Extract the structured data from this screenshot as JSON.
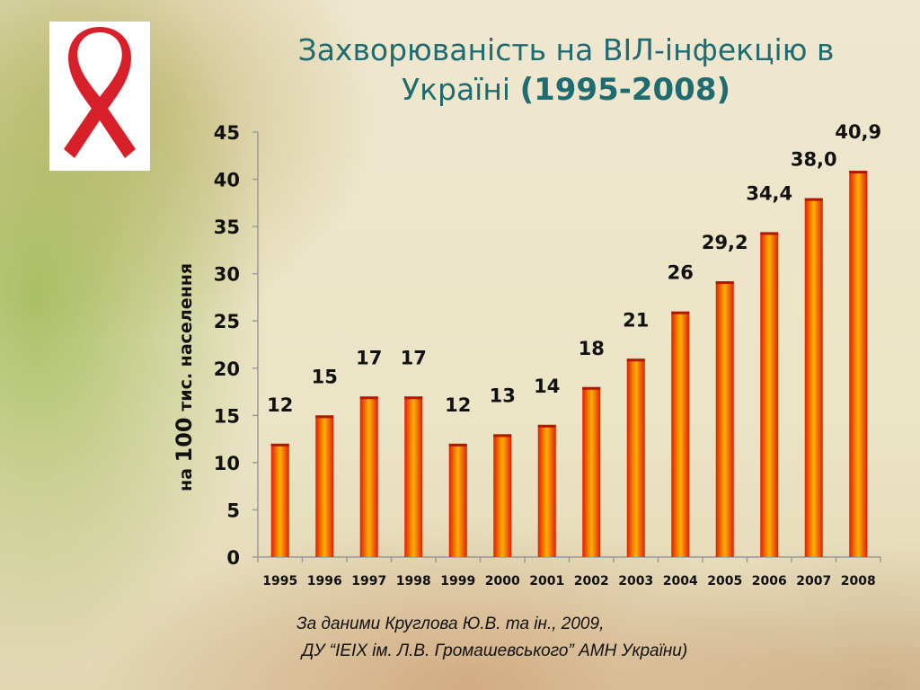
{
  "slide": {
    "title_line1": "Захворюваність на ВІЛ-інфекцію в",
    "title_line2": "Україні",
    "title_years": "(1995-2008)",
    "source_line1": "За даними Круглова Ю.В. та ін., 2009,",
    "source_line2": "ДУ “ІЕІХ ім. Л.В. Громашевського” АМН України)",
    "ribbon_color": "#d8202a"
  },
  "chart_data": {
    "type": "bar",
    "categories": [
      "1995",
      "1996",
      "1997",
      "1998",
      "1999",
      "2000",
      "2001",
      "2002",
      "2003",
      "2004",
      "2005",
      "2006",
      "2007",
      "2008"
    ],
    "values": [
      12,
      15,
      17,
      17,
      12,
      13,
      14,
      18,
      21,
      26,
      29.2,
      34.4,
      38.0,
      40.9
    ],
    "data_labels": [
      "12",
      "15",
      "17",
      "17",
      "12",
      "13",
      "14",
      "18",
      "21",
      "26",
      "29,2",
      "34,4",
      "38,0",
      "40,9"
    ],
    "ylabel_prefix": "на",
    "ylabel_number": "100",
    "ylabel_suffix": "тис. населення",
    "ylim": [
      0,
      45
    ],
    "yticks": [
      0,
      5,
      10,
      15,
      20,
      25,
      30,
      35,
      40,
      45
    ],
    "grid": false,
    "bar_color_center": "#ffb000",
    "bar_color_edge": "#e02000"
  }
}
